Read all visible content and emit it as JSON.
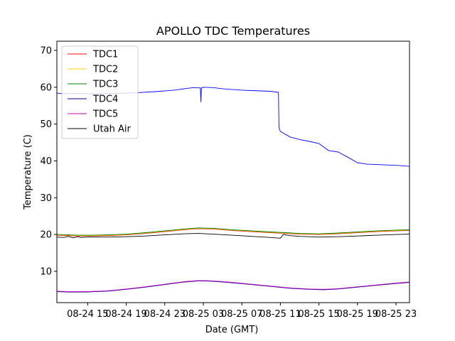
{
  "chart_data": {
    "type": "line",
    "title": "APOLLO TDC Temperatures",
    "xlabel": "Date (GMT)",
    "ylabel": "Temperature (C)",
    "xlim": [
      11.8,
      48.4
    ],
    "ylim": [
      1.5,
      72.5
    ],
    "x_unit": "hours since 2019-08-24 00:00 GMT",
    "x_ticks": [
      {
        "x": 15,
        "label": "08-24 15"
      },
      {
        "x": 19,
        "label": "08-24 19"
      },
      {
        "x": 23,
        "label": "08-24 23"
      },
      {
        "x": 27,
        "label": "08-25 03"
      },
      {
        "x": 31,
        "label": "08-25 07"
      },
      {
        "x": 35,
        "label": "08-25 11"
      },
      {
        "x": 39,
        "label": "08-25 15"
      },
      {
        "x": 43,
        "label": "08-25 19"
      },
      {
        "x": 47,
        "label": "08-25 23"
      }
    ],
    "y_ticks": [
      10,
      20,
      30,
      40,
      50,
      60,
      70
    ],
    "legend_position": "top-left",
    "series": [
      {
        "name": "TDC1",
        "color": "#ff0000",
        "x": [
          11.8,
          13,
          14,
          15,
          17,
          19,
          21,
          23,
          25,
          26.5,
          28,
          30,
          32,
          34,
          35.5,
          37,
          39,
          41,
          43,
          45,
          47,
          48.4
        ],
        "y": [
          19.8,
          19.7,
          19.6,
          19.6,
          19.7,
          19.9,
          20.3,
          20.8,
          21.3,
          21.6,
          21.5,
          21.1,
          20.8,
          20.5,
          20.3,
          20.1,
          20.0,
          20.2,
          20.5,
          20.8,
          21.0,
          21.1
        ]
      },
      {
        "name": "TDC2",
        "color": "#ffcc00",
        "x": [
          11.8,
          13,
          14,
          15,
          17,
          19,
          21,
          23,
          25,
          26.5,
          28,
          30,
          32,
          34,
          35.5,
          37,
          39,
          41,
          43,
          45,
          47,
          48.4
        ],
        "y": [
          19.9,
          19.8,
          19.7,
          19.7,
          19.8,
          20.0,
          20.4,
          20.9,
          21.4,
          21.7,
          21.6,
          21.2,
          20.9,
          20.6,
          20.4,
          20.2,
          20.1,
          20.3,
          20.6,
          20.9,
          21.1,
          21.2
        ]
      },
      {
        "name": "TDC3",
        "color": "#008000",
        "x": [
          11.8,
          13,
          14,
          15,
          17,
          19,
          21,
          23,
          25,
          26.5,
          28,
          30,
          32,
          34,
          35.5,
          37,
          39,
          41,
          43,
          45,
          47,
          48.4
        ],
        "y": [
          20.0,
          19.9,
          19.8,
          19.8,
          19.9,
          20.1,
          20.5,
          21.0,
          21.5,
          21.8,
          21.7,
          21.3,
          21.0,
          20.7,
          20.5,
          20.3,
          20.2,
          20.4,
          20.7,
          21.0,
          21.2,
          21.3
        ]
      },
      {
        "name": "TDC4",
        "color": "#000080",
        "x": [
          11.8,
          13,
          15,
          17,
          19,
          21,
          23,
          25,
          26.5,
          27,
          28,
          30,
          32,
          34,
          36,
          38,
          39.5,
          41,
          43,
          45,
          47,
          48.4
        ],
        "y": [
          4.5,
          4.4,
          4.4,
          4.6,
          5.1,
          5.7,
          6.4,
          7.1,
          7.4,
          7.4,
          7.3,
          6.9,
          6.4,
          5.9,
          5.4,
          5.1,
          5.0,
          5.2,
          5.7,
          6.2,
          6.7,
          7.0
        ]
      },
      {
        "name": "TDC5",
        "color": "#bf00bf",
        "x": [
          11.8,
          13,
          15,
          17,
          19,
          21,
          23,
          25,
          26.5,
          27,
          28,
          30,
          32,
          34,
          36,
          38,
          39.5,
          41,
          43,
          45,
          47,
          48.4
        ],
        "y": [
          4.6,
          4.5,
          4.5,
          4.7,
          5.2,
          5.8,
          6.5,
          7.2,
          7.5,
          7.5,
          7.4,
          7.0,
          6.5,
          6.0,
          5.5,
          5.2,
          5.1,
          5.3,
          5.8,
          6.3,
          6.8,
          7.1
        ]
      },
      {
        "name": "Utah Air",
        "color": "#000000",
        "x": [
          11.8,
          12.5,
          13,
          13.5,
          14,
          14.3,
          15,
          17,
          19,
          21,
          23,
          25,
          26.5,
          28,
          30,
          32,
          34,
          35,
          35.3,
          36,
          37,
          39,
          41,
          43,
          45,
          47,
          48.4
        ],
        "y": [
          19.3,
          19.2,
          19.5,
          19.1,
          19.4,
          19.2,
          19.3,
          19.3,
          19.4,
          19.6,
          19.9,
          20.2,
          20.3,
          20.1,
          19.8,
          19.5,
          19.2,
          19.0,
          20.0,
          19.7,
          19.5,
          19.3,
          19.4,
          19.6,
          19.8,
          20.0,
          20.1
        ]
      },
      {
        "name": "",
        "color": "#0000ff",
        "x": [
          11.8,
          12.5,
          14,
          16,
          18,
          19,
          20,
          22,
          24,
          25,
          26,
          26.7,
          26.75,
          26.8,
          27,
          28,
          29,
          30,
          31,
          32,
          33,
          34,
          34.8,
          34.85,
          35,
          36,
          37,
          38,
          39,
          40,
          41,
          42,
          43,
          44,
          45,
          46,
          47,
          48,
          48.4
        ],
        "y": [
          58.4,
          58.2,
          58.3,
          58.2,
          58.3,
          58.4,
          58.5,
          58.8,
          59.2,
          59.6,
          59.9,
          59.8,
          56.0,
          59.8,
          60.0,
          59.9,
          59.6,
          59.4,
          59.2,
          59.1,
          59.0,
          58.9,
          58.6,
          49.0,
          48.0,
          46.5,
          45.8,
          45.3,
          44.7,
          42.8,
          42.4,
          41.0,
          39.5,
          39.1,
          39.0,
          38.9,
          38.8,
          38.6,
          38.5
        ]
      }
    ]
  }
}
